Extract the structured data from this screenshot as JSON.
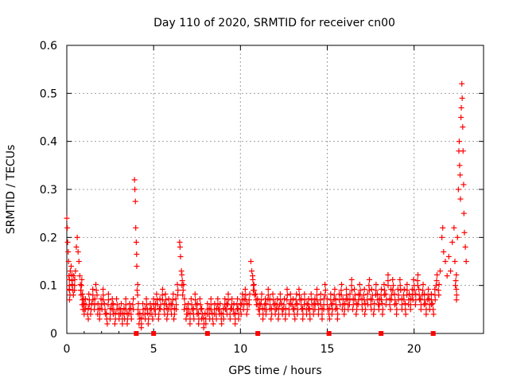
{
  "chart_data": {
    "type": "scatter",
    "title": "Day 110 of 2020, SRMTID for receiver cn00",
    "xlabel": "GPS time / hours",
    "ylabel": "SRMTID / TECUs",
    "xlim": [
      0,
      24
    ],
    "ylim": [
      0,
      0.6
    ],
    "xticks": [
      0,
      5,
      10,
      15,
      20
    ],
    "yticks": [
      0,
      0.1,
      0.2,
      0.3,
      0.4,
      0.5,
      0.6
    ],
    "xtick_labels": [
      "0",
      "5",
      "10",
      "15",
      "20"
    ],
    "ytick_labels": [
      "0",
      "0.1",
      "0.2",
      "0.3",
      "0.4",
      "0.5",
      "0.6"
    ],
    "grid": true,
    "legend": null,
    "marker": "+",
    "series": [
      {
        "name": "SRMTID",
        "color": "#ff0000",
        "points": [
          [
            0.0,
            0.24
          ],
          [
            0.03,
            0.22
          ],
          [
            0.05,
            0.19
          ],
          [
            0.08,
            0.17
          ],
          [
            0.1,
            0.15
          ],
          [
            0.12,
            0.12
          ],
          [
            0.15,
            0.1
          ],
          [
            0.18,
            0.08
          ],
          [
            0.2,
            0.13
          ],
          [
            0.25,
            0.14
          ],
          [
            0.3,
            0.11
          ],
          [
            0.35,
            0.09
          ],
          [
            0.4,
            0.12
          ],
          [
            0.45,
            0.1
          ],
          [
            0.5,
            0.13
          ],
          [
            0.55,
            0.18
          ],
          [
            0.6,
            0.2
          ],
          [
            0.65,
            0.17
          ],
          [
            0.7,
            0.15
          ],
          [
            0.75,
            0.12
          ],
          [
            0.8,
            0.09
          ],
          [
            0.85,
            0.1
          ],
          [
            0.9,
            0.07
          ],
          [
            0.95,
            0.06
          ],
          [
            1.0,
            0.05
          ],
          [
            1.1,
            0.06
          ],
          [
            1.2,
            0.04
          ],
          [
            1.3,
            0.07
          ],
          [
            1.4,
            0.05
          ],
          [
            1.5,
            0.08
          ],
          [
            1.6,
            0.06
          ],
          [
            1.7,
            0.09
          ],
          [
            1.8,
            0.05
          ],
          [
            1.9,
            0.04
          ],
          [
            2.0,
            0.06
          ],
          [
            2.1,
            0.08
          ],
          [
            2.2,
            0.05
          ],
          [
            2.3,
            0.03
          ],
          [
            2.4,
            0.07
          ],
          [
            2.5,
            0.04
          ],
          [
            2.6,
            0.06
          ],
          [
            2.7,
            0.05
          ],
          [
            2.8,
            0.03
          ],
          [
            2.9,
            0.06
          ],
          [
            3.0,
            0.04
          ],
          [
            3.1,
            0.05
          ],
          [
            3.2,
            0.03
          ],
          [
            3.3,
            0.04
          ],
          [
            3.4,
            0.06
          ],
          [
            3.5,
            0.03
          ],
          [
            3.6,
            0.05
          ],
          [
            3.7,
            0.04
          ],
          [
            3.8,
            0.06
          ],
          [
            3.9,
            0.32
          ],
          [
            3.92,
            0.3
          ],
          [
            3.95,
            0.275
          ],
          [
            3.97,
            0.22
          ],
          [
            4.0,
            0.19
          ],
          [
            4.02,
            0.165
          ],
          [
            4.03,
            0.14
          ],
          [
            4.05,
            0.09
          ],
          [
            4.1,
            0.05
          ],
          [
            4.2,
            0.03
          ],
          [
            4.3,
            0.02
          ],
          [
            4.4,
            0.05
          ],
          [
            4.5,
            0.04
          ],
          [
            4.6,
            0.06
          ],
          [
            4.7,
            0.03
          ],
          [
            4.8,
            0.05
          ],
          [
            4.9,
            0.04
          ],
          [
            5.0,
            0.06
          ],
          [
            5.1,
            0.05
          ],
          [
            5.2,
            0.07
          ],
          [
            5.3,
            0.04
          ],
          [
            5.4,
            0.06
          ],
          [
            5.5,
            0.08
          ],
          [
            5.6,
            0.05
          ],
          [
            5.7,
            0.07
          ],
          [
            5.8,
            0.04
          ],
          [
            5.9,
            0.06
          ],
          [
            6.0,
            0.05
          ],
          [
            6.1,
            0.07
          ],
          [
            6.2,
            0.04
          ],
          [
            6.3,
            0.06
          ],
          [
            6.4,
            0.09
          ],
          [
            6.5,
            0.19
          ],
          [
            6.52,
            0.18
          ],
          [
            6.55,
            0.16
          ],
          [
            6.6,
            0.13
          ],
          [
            6.65,
            0.11
          ],
          [
            6.7,
            0.09
          ],
          [
            6.8,
            0.06
          ],
          [
            6.9,
            0.04
          ],
          [
            7.0,
            0.05
          ],
          [
            7.1,
            0.03
          ],
          [
            7.2,
            0.06
          ],
          [
            7.3,
            0.04
          ],
          [
            7.4,
            0.07
          ],
          [
            7.5,
            0.05
          ],
          [
            7.6,
            0.03
          ],
          [
            7.7,
            0.06
          ],
          [
            7.8,
            0.04
          ],
          [
            7.9,
            0.02
          ],
          [
            8.0,
            0.03
          ],
          [
            8.1,
            0.05
          ],
          [
            8.2,
            0.04
          ],
          [
            8.3,
            0.06
          ],
          [
            8.4,
            0.03
          ],
          [
            8.5,
            0.05
          ],
          [
            8.6,
            0.04
          ],
          [
            8.7,
            0.06
          ],
          [
            8.8,
            0.05
          ],
          [
            8.9,
            0.03
          ],
          [
            9.0,
            0.04
          ],
          [
            9.1,
            0.06
          ],
          [
            9.2,
            0.05
          ],
          [
            9.3,
            0.07
          ],
          [
            9.4,
            0.04
          ],
          [
            9.5,
            0.06
          ],
          [
            9.6,
            0.05
          ],
          [
            9.7,
            0.03
          ],
          [
            9.8,
            0.06
          ],
          [
            9.9,
            0.04
          ],
          [
            10.0,
            0.05
          ],
          [
            10.1,
            0.07
          ],
          [
            10.2,
            0.06
          ],
          [
            10.3,
            0.08
          ],
          [
            10.4,
            0.05
          ],
          [
            10.5,
            0.07
          ],
          [
            10.6,
            0.15
          ],
          [
            10.65,
            0.13
          ],
          [
            10.7,
            0.12
          ],
          [
            10.75,
            0.1
          ],
          [
            10.8,
            0.09
          ],
          [
            10.9,
            0.07
          ],
          [
            11.0,
            0.06
          ],
          [
            11.1,
            0.05
          ],
          [
            11.2,
            0.07
          ],
          [
            11.3,
            0.04
          ],
          [
            11.4,
            0.06
          ],
          [
            11.5,
            0.05
          ],
          [
            11.6,
            0.08
          ],
          [
            11.7,
            0.06
          ],
          [
            11.8,
            0.04
          ],
          [
            11.9,
            0.07
          ],
          [
            12.0,
            0.05
          ],
          [
            12.1,
            0.06
          ],
          [
            12.2,
            0.04
          ],
          [
            12.3,
            0.07
          ],
          [
            12.4,
            0.05
          ],
          [
            12.5,
            0.06
          ],
          [
            12.6,
            0.04
          ],
          [
            12.7,
            0.08
          ],
          [
            12.8,
            0.05
          ],
          [
            12.9,
            0.07
          ],
          [
            13.0,
            0.06
          ],
          [
            13.1,
            0.04
          ],
          [
            13.2,
            0.07
          ],
          [
            13.3,
            0.05
          ],
          [
            13.4,
            0.08
          ],
          [
            13.5,
            0.06
          ],
          [
            13.6,
            0.04
          ],
          [
            13.7,
            0.07
          ],
          [
            13.8,
            0.05
          ],
          [
            13.9,
            0.06
          ],
          [
            14.0,
            0.04
          ],
          [
            14.1,
            0.07
          ],
          [
            14.2,
            0.05
          ],
          [
            14.3,
            0.06
          ],
          [
            14.4,
            0.08
          ],
          [
            14.5,
            0.05
          ],
          [
            14.6,
            0.07
          ],
          [
            14.7,
            0.04
          ],
          [
            14.8,
            0.06
          ],
          [
            14.9,
            0.09
          ],
          [
            15.0,
            0.06
          ],
          [
            15.1,
            0.04
          ],
          [
            15.2,
            0.07
          ],
          [
            15.3,
            0.05
          ],
          [
            15.4,
            0.08
          ],
          [
            15.5,
            0.06
          ],
          [
            15.6,
            0.04
          ],
          [
            15.7,
            0.07
          ],
          [
            15.8,
            0.09
          ],
          [
            15.9,
            0.06
          ],
          [
            16.0,
            0.05
          ],
          [
            16.1,
            0.08
          ],
          [
            16.2,
            0.06
          ],
          [
            16.3,
            0.07
          ],
          [
            16.4,
            0.1
          ],
          [
            16.5,
            0.06
          ],
          [
            16.6,
            0.08
          ],
          [
            16.7,
            0.05
          ],
          [
            16.8,
            0.07
          ],
          [
            16.9,
            0.09
          ],
          [
            17.0,
            0.06
          ],
          [
            17.1,
            0.08
          ],
          [
            17.2,
            0.05
          ],
          [
            17.3,
            0.07
          ],
          [
            17.4,
            0.1
          ],
          [
            17.5,
            0.06
          ],
          [
            17.6,
            0.08
          ],
          [
            17.7,
            0.05
          ],
          [
            17.8,
            0.09
          ],
          [
            17.9,
            0.07
          ],
          [
            18.0,
            0.06
          ],
          [
            18.1,
            0.08
          ],
          [
            18.2,
            0.05
          ],
          [
            18.3,
            0.09
          ],
          [
            18.4,
            0.07
          ],
          [
            18.5,
            0.11
          ],
          [
            18.6,
            0.06
          ],
          [
            18.7,
            0.08
          ],
          [
            18.8,
            0.1
          ],
          [
            18.9,
            0.07
          ],
          [
            19.0,
            0.05
          ],
          [
            19.1,
            0.08
          ],
          [
            19.2,
            0.1
          ],
          [
            19.3,
            0.06
          ],
          [
            19.4,
            0.08
          ],
          [
            19.5,
            0.05
          ],
          [
            19.6,
            0.09
          ],
          [
            19.7,
            0.07
          ],
          [
            19.8,
            0.06
          ],
          [
            19.9,
            0.08
          ],
          [
            20.0,
            0.1
          ],
          [
            20.1,
            0.07
          ],
          [
            20.2,
            0.11
          ],
          [
            20.3,
            0.08
          ],
          [
            20.4,
            0.06
          ],
          [
            20.5,
            0.09
          ],
          [
            20.6,
            0.07
          ],
          [
            20.7,
            0.05
          ],
          [
            20.8,
            0.08
          ],
          [
            20.9,
            0.06
          ],
          [
            21.0,
            0.07
          ],
          [
            21.1,
            0.05
          ],
          [
            21.2,
            0.08
          ],
          [
            21.3,
            0.11
          ],
          [
            21.4,
            0.09
          ],
          [
            21.5,
            0.13
          ],
          [
            21.6,
            0.2
          ],
          [
            21.65,
            0.22
          ],
          [
            21.7,
            0.17
          ],
          [
            21.8,
            0.15
          ],
          [
            21.9,
            0.12
          ],
          [
            22.0,
            0.16
          ],
          [
            22.1,
            0.13
          ],
          [
            22.2,
            0.19
          ],
          [
            22.3,
            0.22
          ],
          [
            22.35,
            0.15
          ],
          [
            22.4,
            0.11
          ],
          [
            22.45,
            0.08
          ],
          [
            22.5,
            0.2
          ],
          [
            22.55,
            0.3
          ],
          [
            22.58,
            0.38
          ],
          [
            22.6,
            0.4
          ],
          [
            22.62,
            0.35
          ],
          [
            22.65,
            0.33
          ],
          [
            22.67,
            0.28
          ],
          [
            22.7,
            0.45
          ],
          [
            22.72,
            0.47
          ],
          [
            22.75,
            0.52
          ],
          [
            22.77,
            0.49
          ],
          [
            22.8,
            0.43
          ],
          [
            22.82,
            0.38
          ],
          [
            22.85,
            0.31
          ],
          [
            22.87,
            0.25
          ],
          [
            22.9,
            0.21
          ],
          [
            22.95,
            0.18
          ],
          [
            23.0,
            0.15
          ]
        ]
      }
    ],
    "markers_on_axis": {
      "color": "#ff0000",
      "x": [
        4.0,
        5.0,
        8.1,
        11.0,
        15.1,
        18.1,
        21.1
      ]
    }
  }
}
